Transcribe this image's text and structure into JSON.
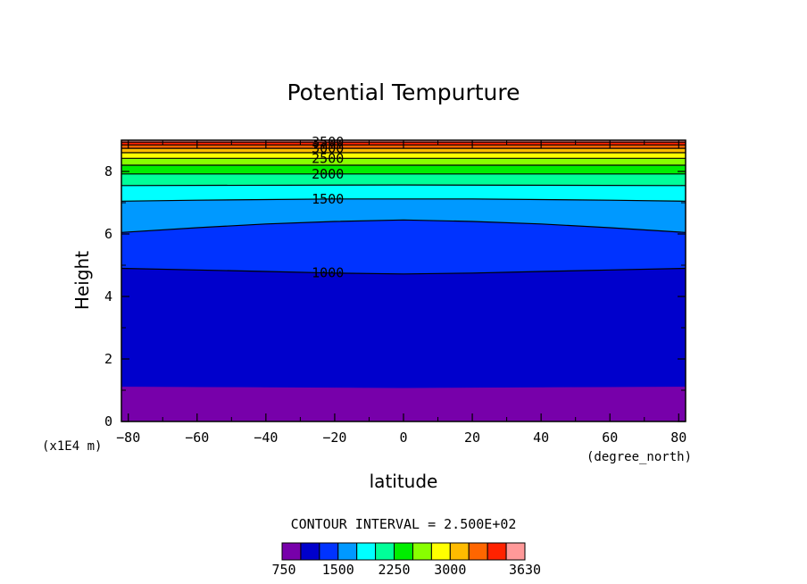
{
  "chart_data": {
    "type": "contour",
    "title": "Potential Tempurture",
    "xlabel": "latitude",
    "ylabel": "Height",
    "x_units": "(degree_north)",
    "y_units": "(x1E4 m)",
    "xlim": [
      -82,
      82
    ],
    "ylim": [
      0,
      9
    ],
    "x_ticks": [
      -80,
      -60,
      -40,
      -20,
      0,
      20,
      40,
      60,
      80
    ],
    "y_ticks": [
      0,
      2,
      4,
      6,
      8
    ],
    "contour_interval_text": "CONTOUR INTERVAL = 2.500E+02",
    "contour_interval": 250,
    "levels": [
      750,
      1000,
      1250,
      1500,
      1750,
      2000,
      2250,
      2500,
      2750,
      3000,
      3250,
      3500,
      3630
    ],
    "colors": [
      "#7700aa",
      "#0000cc",
      "#0033ff",
      "#0099ff",
      "#00ffff",
      "#00ff99",
      "#00ee00",
      "#88ff00",
      "#ffff00",
      "#ffbb00",
      "#ff6600",
      "#ff2200",
      "#ff9999"
    ],
    "contours": [
      {
        "level": 1000,
        "label": "1000",
        "points": [
          [
            -82,
            4.9
          ],
          [
            -60,
            4.85
          ],
          [
            -40,
            4.8
          ],
          [
            -20,
            4.75
          ],
          [
            0,
            4.72
          ],
          [
            20,
            4.75
          ],
          [
            40,
            4.8
          ],
          [
            60,
            4.85
          ],
          [
            82,
            4.9
          ]
        ]
      },
      {
        "level": 1250,
        "label": "",
        "points": [
          [
            -82,
            6.05
          ],
          [
            -60,
            6.2
          ],
          [
            -40,
            6.32
          ],
          [
            -20,
            6.4
          ],
          [
            0,
            6.45
          ],
          [
            20,
            6.4
          ],
          [
            40,
            6.32
          ],
          [
            60,
            6.2
          ],
          [
            82,
            6.05
          ]
        ]
      },
      {
        "level": 1500,
        "label": "1500",
        "points": [
          [
            -82,
            7.05
          ],
          [
            -60,
            7.08
          ],
          [
            -40,
            7.1
          ],
          [
            -20,
            7.12
          ],
          [
            0,
            7.12
          ],
          [
            20,
            7.12
          ],
          [
            40,
            7.1
          ],
          [
            60,
            7.08
          ],
          [
            82,
            7.05
          ]
        ]
      },
      {
        "level": 1750,
        "label": "",
        "points": [
          [
            -82,
            7.55
          ],
          [
            0,
            7.57
          ],
          [
            82,
            7.55
          ]
        ]
      },
      {
        "level": 2000,
        "label": "2000",
        "points": [
          [
            -82,
            7.92
          ],
          [
            0,
            7.92
          ],
          [
            82,
            7.92
          ]
        ]
      },
      {
        "level": 2250,
        "label": "",
        "points": [
          [
            -82,
            8.2
          ],
          [
            0,
            8.2
          ],
          [
            82,
            8.2
          ]
        ]
      },
      {
        "level": 2500,
        "label": "2500",
        "points": [
          [
            -82,
            8.42
          ],
          [
            0,
            8.42
          ],
          [
            82,
            8.42
          ]
        ]
      },
      {
        "level": 2750,
        "label": "",
        "points": [
          [
            -82,
            8.6
          ],
          [
            0,
            8.6
          ],
          [
            82,
            8.6
          ]
        ]
      },
      {
        "level": 3000,
        "label": "3000",
        "points": [
          [
            -82,
            8.74
          ],
          [
            0,
            8.74
          ],
          [
            82,
            8.74
          ]
        ]
      },
      {
        "level": 3250,
        "label": "",
        "points": [
          [
            -82,
            8.85
          ],
          [
            0,
            8.85
          ],
          [
            82,
            8.85
          ]
        ]
      },
      {
        "level": 3500,
        "label": "3500",
        "points": [
          [
            -82,
            8.94
          ],
          [
            0,
            8.94
          ],
          [
            82,
            8.94
          ]
        ]
      }
    ],
    "bottom_boundary": [
      [
        -82,
        1.12
      ],
      [
        -40,
        1.1
      ],
      [
        0,
        1.08
      ],
      [
        40,
        1.1
      ],
      [
        82,
        1.12
      ]
    ],
    "colorbar_labels": [
      "750",
      "1500",
      "2250",
      "3000",
      "3630"
    ]
  }
}
